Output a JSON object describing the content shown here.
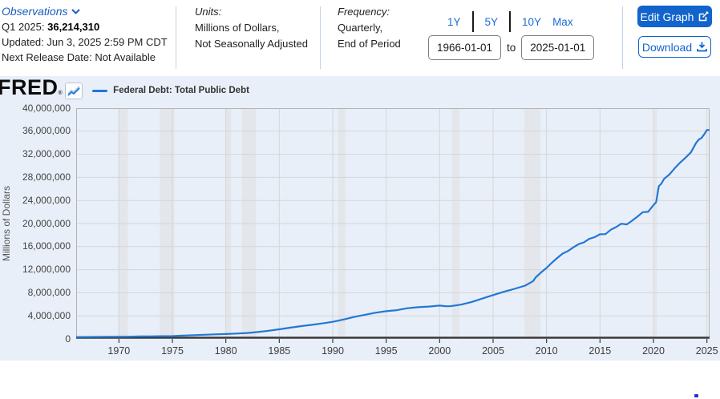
{
  "header": {
    "observations": {
      "label": "Observations",
      "q_label": "Q1 2025:",
      "value": "36,214,310",
      "updated": "Updated: Jun 3, 2025 2:59 PM CDT",
      "next_release": "Next Release Date: Not Available"
    },
    "units": {
      "title": "Units:",
      "line1": "Millions of Dollars,",
      "line2": "Not Seasonally Adjusted"
    },
    "frequency": {
      "title": "Frequency:",
      "line1": "Quarterly,",
      "line2": "End of Period"
    },
    "range": {
      "presets": [
        "1Y",
        "5Y",
        "10Y",
        "Max"
      ],
      "start": "1966-01-01",
      "to_label": "to",
      "end": "2025-01-01"
    },
    "buttons": {
      "edit": "Edit Graph",
      "download": "Download"
    }
  },
  "graph": {
    "logo": "FRED",
    "logo_mark": "®",
    "legend": "Federal Debt: Total Public Debt",
    "y_axis_title": "Millions of Dollars"
  },
  "colors": {
    "accent_blue": "#1164cb",
    "link_blue": "#1a6dd4",
    "series_blue": "#2377d4",
    "container_bg": "#e9eff8",
    "recession_band": "#e3e6ea",
    "gridline": "#d6d6d6",
    "plot_border": "#b3b3b3",
    "axis_line": "#3a3a3a"
  },
  "chart_data": {
    "type": "line",
    "title": "Federal Debt: Total Public Debt",
    "xlabel": "",
    "ylabel": "Millions of Dollars",
    "xlim": [
      1966,
      2025.25
    ],
    "ylim": [
      0,
      40000000
    ],
    "grid": true,
    "legend_position": "top-left",
    "x_ticks": [
      1970,
      1975,
      1980,
      1985,
      1990,
      1995,
      2000,
      2005,
      2010,
      2015,
      2020,
      2025
    ],
    "y_ticks": [
      0,
      4000000,
      8000000,
      12000000,
      16000000,
      20000000,
      24000000,
      28000000,
      32000000,
      36000000,
      40000000
    ],
    "recession_bands": [
      [
        1969.92,
        1970.83
      ],
      [
        1973.83,
        1975.17
      ],
      [
        1980.0,
        1980.5
      ],
      [
        1981.5,
        1982.83
      ],
      [
        1990.5,
        1991.17
      ],
      [
        2001.17,
        2001.83
      ],
      [
        2007.92,
        2009.42
      ],
      [
        2020.08,
        2020.33
      ]
    ],
    "series": [
      {
        "name": "Federal Debt: Total Public Debt",
        "color": "#2377d4",
        "points": [
          [
            1966,
            316000
          ],
          [
            1967,
            329319
          ],
          [
            1968,
            344663
          ],
          [
            1969,
            358029
          ],
          [
            1970,
            368226
          ],
          [
            1971,
            389158
          ],
          [
            1972,
            424131
          ],
          [
            1973,
            449298
          ],
          [
            1974,
            469899
          ],
          [
            1975,
            492665
          ],
          [
            1976,
            576649
          ],
          [
            1977,
            653544
          ],
          [
            1978,
            718943
          ],
          [
            1979,
            789207
          ],
          [
            1980,
            845116
          ],
          [
            1981,
            930210
          ],
          [
            1982,
            1028729
          ],
          [
            1983,
            1197073
          ],
          [
            1984,
            1410702
          ],
          [
            1985,
            1662966
          ],
          [
            1986,
            1945941
          ],
          [
            1987,
            2214835
          ],
          [
            1988,
            2431715
          ],
          [
            1989,
            2684392
          ],
          [
            1990,
            2952994
          ],
          [
            1991,
            3364820
          ],
          [
            1992,
            3801698
          ],
          [
            1993,
            4177009
          ],
          [
            1994,
            4535687
          ],
          [
            1995,
            4800149
          ],
          [
            1996,
            4988665
          ],
          [
            1997,
            5323172
          ],
          [
            1998,
            5502388
          ],
          [
            1999,
            5614217
          ],
          [
            2000,
            5776091
          ],
          [
            2000.5,
            5685000
          ],
          [
            2001,
            5662216
          ],
          [
            2001.5,
            5807000
          ],
          [
            2002,
            5943439
          ],
          [
            2003,
            6405707
          ],
          [
            2004,
            7001312
          ],
          [
            2005,
            7596143
          ],
          [
            2006,
            8170424
          ],
          [
            2007,
            8680224
          ],
          [
            2008,
            9229172
          ],
          [
            2008.75,
            10024725
          ],
          [
            2009,
            10699805
          ],
          [
            2009.5,
            11545275
          ],
          [
            2010,
            12311349
          ],
          [
            2010.5,
            13201800
          ],
          [
            2011,
            14025215
          ],
          [
            2011.5,
            14790340
          ],
          [
            2012,
            15222940
          ],
          [
            2012.5,
            15855500
          ],
          [
            2013,
            16432730
          ],
          [
            2013.5,
            16738184
          ],
          [
            2014,
            17351970
          ],
          [
            2014.5,
            17632606
          ],
          [
            2015,
            18141444
          ],
          [
            2015.5,
            18151998
          ],
          [
            2016,
            18922179
          ],
          [
            2016.5,
            19381591
          ],
          [
            2017,
            19976827
          ],
          [
            2017.5,
            19844554
          ],
          [
            2018,
            20492747
          ],
          [
            2018.5,
            21195070
          ],
          [
            2019,
            21974096
          ],
          [
            2019.5,
            22023544
          ],
          [
            2020,
            23201380
          ],
          [
            2020.25,
            23686911
          ],
          [
            2020.5,
            26477121
          ],
          [
            2020.75,
            26945391
          ],
          [
            2021,
            27747798
          ],
          [
            2021.5,
            28529437
          ],
          [
            2022,
            29617215
          ],
          [
            2022.5,
            30568581
          ],
          [
            2023,
            31419689
          ],
          [
            2023.5,
            32332274
          ],
          [
            2023.75,
            33167334
          ],
          [
            2024,
            34001494
          ],
          [
            2024.25,
            34586500
          ],
          [
            2024.5,
            34831700
          ],
          [
            2024.75,
            35464674
          ],
          [
            2025,
            36218605
          ],
          [
            2025.25,
            36214310
          ]
        ]
      }
    ]
  }
}
